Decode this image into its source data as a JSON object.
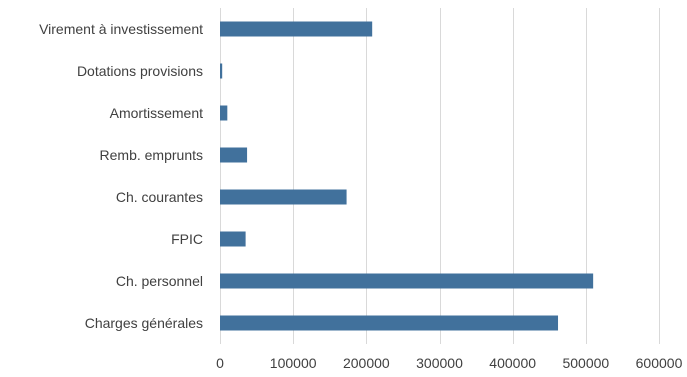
{
  "chart_data": {
    "type": "bar",
    "orientation": "horizontal",
    "categories": [
      "Virement à investissement",
      "Dotations provisions",
      "Amortissement",
      "Remb. emprunts",
      "Ch. courantes",
      "FPIC",
      "Ch. personnel",
      "Charges générales"
    ],
    "values": [
      208000,
      3000,
      10000,
      37000,
      173000,
      35000,
      510000,
      462000
    ],
    "xlim": [
      0,
      600000
    ],
    "x_ticks": [
      0,
      100000,
      200000,
      300000,
      400000,
      500000,
      600000
    ],
    "x_tick_labels": [
      "0",
      "100000",
      "200000",
      "300000",
      "400000",
      "500000",
      "600000"
    ],
    "bar_color": "#41719c",
    "grid": true,
    "legend": "none"
  }
}
